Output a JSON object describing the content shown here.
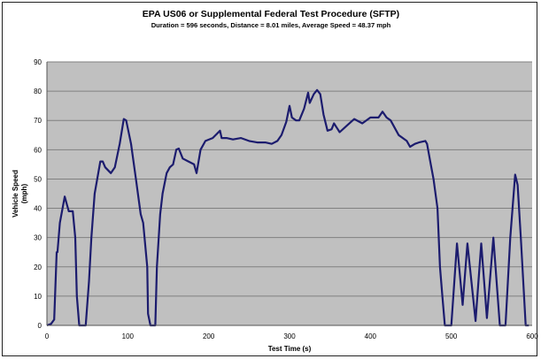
{
  "chart_data": {
    "type": "line",
    "title": "EPA US06  or Supplemental Federal Test Procedure (SFTP)",
    "subtitle": "Duration = 596 seconds, Distance = 8.01 miles, Average Speed = 48.37 mph",
    "xlabel": "Test Time (s)",
    "ylabel": [
      "Vehicle Speed",
      "(mph)"
    ],
    "xlim": [
      0,
      600
    ],
    "ylim": [
      0,
      90
    ],
    "xticks": [
      0,
      100,
      200,
      300,
      400,
      500,
      600
    ],
    "yticks": [
      0,
      10,
      20,
      30,
      40,
      50,
      60,
      70,
      80,
      90
    ],
    "grid": "horizontal",
    "colors": {
      "line": "#1c1c6e",
      "plot_bg": "#c0c0c0",
      "grid": "#808080"
    },
    "series": [
      {
        "name": "Vehicle Speed",
        "x": [
          0,
          5,
          9,
          12,
          13,
          16,
          22,
          25,
          27,
          32,
          35,
          37,
          40,
          48,
          52,
          55,
          59,
          66,
          69,
          72,
          79,
          84,
          90,
          95,
          98,
          104,
          110,
          116,
          119,
          124,
          125,
          128,
          134,
          136,
          140,
          143,
          148,
          152,
          156,
          160,
          163,
          168,
          175,
          182,
          185,
          190,
          196,
          205,
          214,
          216,
          222,
          230,
          240,
          250,
          260,
          270,
          278,
          285,
          290,
          296,
          300,
          303,
          308,
          312,
          318,
          323,
          325,
          330,
          334,
          338,
          342,
          347,
          352,
          355,
          362,
          370,
          380,
          390,
          400,
          410,
          415,
          420,
          425,
          435,
          445,
          449,
          455,
          460,
          468,
          470,
          474,
          478,
          483,
          486,
          489,
          492,
          500,
          507,
          514,
          520,
          530,
          537,
          544,
          552,
          560,
          567,
          573,
          579,
          582,
          586,
          592,
          596
        ],
        "y": [
          0,
          0.5,
          2,
          25,
          25,
          35,
          44,
          41,
          39,
          39,
          30,
          10,
          0,
          0,
          15,
          30,
          45,
          56,
          56,
          54,
          52,
          54,
          62,
          70.5,
          70,
          62,
          50,
          38,
          35,
          20,
          4,
          0,
          0,
          20,
          38,
          45,
          52,
          54,
          55,
          60,
          60.4,
          57,
          56,
          55,
          52,
          60,
          63,
          64,
          66.5,
          64,
          64,
          63.5,
          64,
          63,
          62.5,
          62.5,
          62,
          63,
          65,
          69.5,
          75,
          71,
          70,
          70,
          74,
          79.5,
          76,
          79,
          80.4,
          79,
          72,
          66.5,
          67,
          69,
          66,
          68,
          70.5,
          69,
          71,
          71,
          73,
          71,
          70,
          65,
          63,
          61,
          62,
          62.5,
          63,
          62,
          56,
          50,
          40,
          20,
          10,
          0,
          0,
          28,
          7,
          28,
          1.5,
          28,
          2.5,
          30,
          0,
          0,
          30,
          51.5,
          48,
          30,
          0,
          0
        ]
      }
    ]
  }
}
